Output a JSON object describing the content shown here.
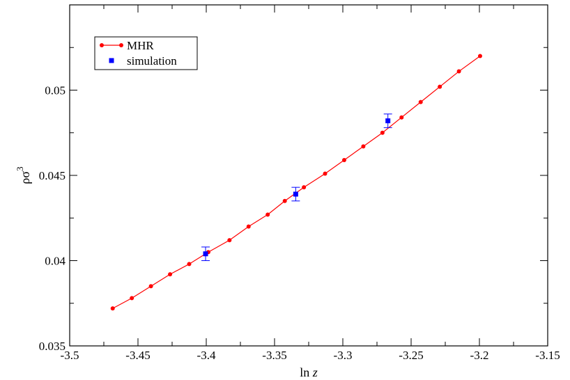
{
  "chart_data": {
    "type": "line",
    "xlabel": "ln z",
    "ylabel": "ρσ³",
    "xlim": [
      -3.5,
      -3.15
    ],
    "ylim": [
      0.035,
      0.055
    ],
    "xticks": [
      -3.5,
      -3.45,
      -3.4,
      -3.35,
      -3.3,
      -3.25,
      -3.2,
      -3.15
    ],
    "xtick_labels": [
      "-3.5",
      "-3.45",
      "-3.4",
      "-3.35",
      "-3.3",
      "-3.25",
      "-3.2",
      "-3.15"
    ],
    "yticks": [
      0.035,
      0.04,
      0.045,
      0.05
    ],
    "ytick_labels": [
      "0.035",
      "0.04",
      "0.045",
      "0.05"
    ],
    "grid": false,
    "legend_position": "top-left",
    "series": [
      {
        "name": "MHR",
        "style": "line-with-circles",
        "color": "#ff0000",
        "x": [
          -3.4685,
          -3.4545,
          -3.4405,
          -3.4265,
          -3.4125,
          -3.3985,
          -3.383,
          -3.369,
          -3.355,
          -3.3425,
          -3.3285,
          -3.313,
          -3.299,
          -3.285,
          -3.271,
          -3.257,
          -3.243,
          -3.229,
          -3.215,
          -3.1995
        ],
        "y": [
          0.0372,
          0.0378,
          0.0385,
          0.0392,
          0.0398,
          0.0405,
          0.0412,
          0.042,
          0.0427,
          0.0435,
          0.0443,
          0.0451,
          0.0459,
          0.0467,
          0.0475,
          0.0484,
          0.0493,
          0.0502,
          0.0511,
          0.052
        ]
      },
      {
        "name": "simulation",
        "style": "squares-with-errorbars",
        "color": "#0000ff",
        "x": [
          -3.4005,
          -3.3345,
          -3.267
        ],
        "y": [
          0.0404,
          0.0439,
          0.0482
        ],
        "yerr": [
          0.0004,
          0.0004,
          0.0004
        ]
      }
    ]
  }
}
